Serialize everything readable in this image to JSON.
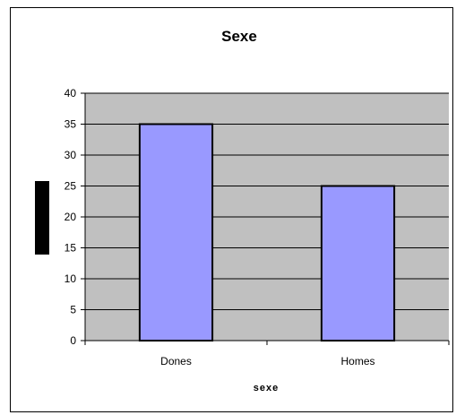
{
  "chart_data": {
    "type": "bar",
    "title": "Sexe",
    "categories": [
      "Dones",
      "Homes"
    ],
    "values": [
      35,
      25
    ],
    "xlabel": "sexe",
    "ylabel": "",
    "ylim": [
      0,
      40
    ],
    "yticks": [
      0,
      5,
      10,
      15,
      20,
      25,
      30,
      35,
      40
    ],
    "grid": true,
    "legend": "none",
    "colors": {
      "bar_fill": "#9999FF",
      "plot_background": "#C0C0C0",
      "gridline": "#000000",
      "ylabel_box": "#000000"
    }
  }
}
